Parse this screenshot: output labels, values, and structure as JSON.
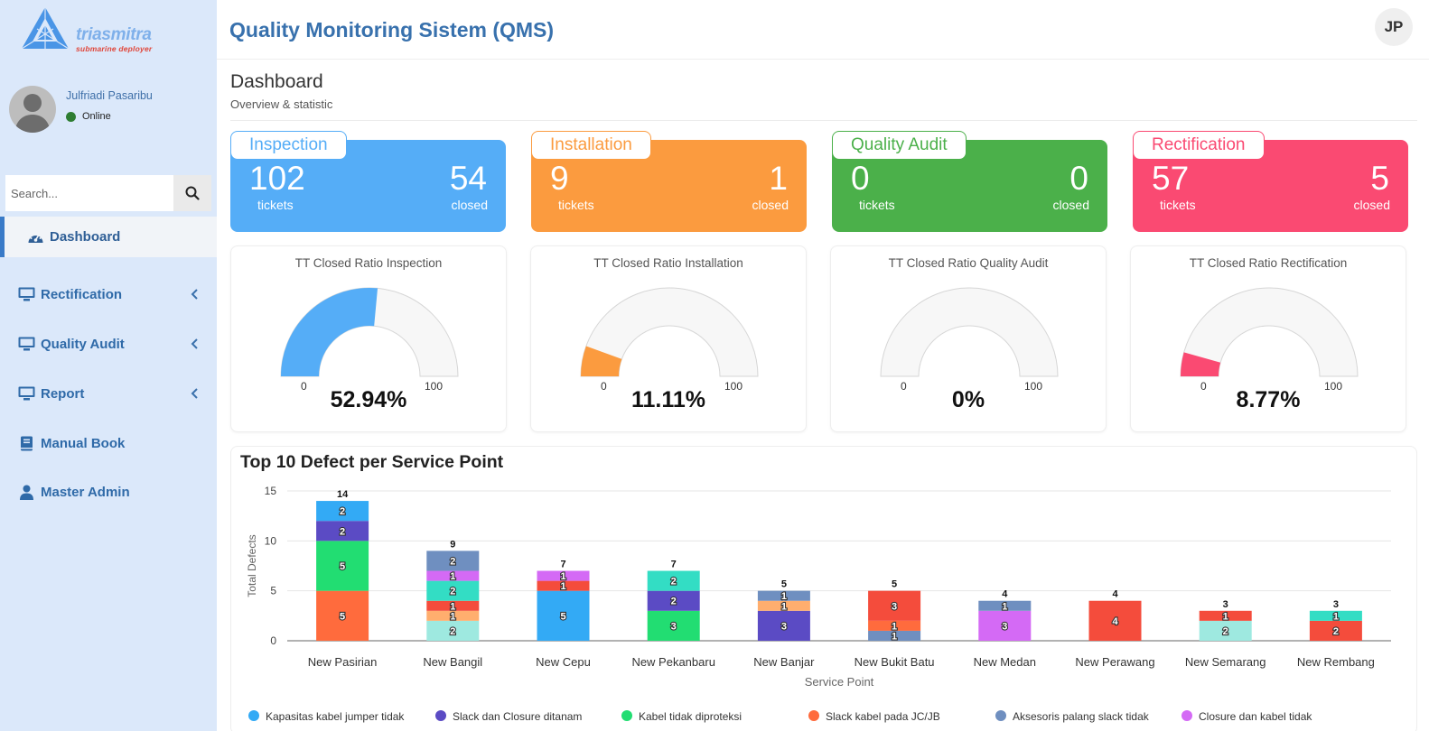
{
  "brand": {
    "name": "triasmitra",
    "tagline": "submarine deployer"
  },
  "user": {
    "name": "Julfriadi Pasaribu",
    "status": "Online",
    "initials": "JP"
  },
  "search": {
    "placeholder": "Search..."
  },
  "nav": {
    "active": "Dashboard",
    "items": [
      {
        "label": "Rectification",
        "icon": "monitor-icon",
        "has_submenu": true
      },
      {
        "label": "Quality Audit",
        "icon": "monitor-icon",
        "has_submenu": true
      },
      {
        "label": "Report",
        "icon": "monitor-icon",
        "has_submenu": true
      },
      {
        "label": "Manual Book",
        "icon": "book-icon",
        "has_submenu": false
      },
      {
        "label": "Master Admin",
        "icon": "user-icon",
        "has_submenu": false
      }
    ]
  },
  "header": {
    "title": "Quality Monitoring Sistem (QMS)"
  },
  "page": {
    "title": "Dashboard",
    "subtitle": "Overview & statistic"
  },
  "cards": [
    {
      "title": "Inspection",
      "tickets": "102",
      "tickets_label": "tickets",
      "closed": "54",
      "closed_label": "closed",
      "color": "#55adf7"
    },
    {
      "title": "Installation",
      "tickets": "9",
      "tickets_label": "tickets",
      "closed": "1",
      "closed_label": "closed",
      "color": "#fb9b3f"
    },
    {
      "title": "Quality Audit",
      "tickets": "0",
      "tickets_label": "tickets",
      "closed": "0",
      "closed_label": "closed",
      "color": "#4bb04a"
    },
    {
      "title": "Rectification",
      "tickets": "57",
      "tickets_label": "tickets",
      "closed": "5",
      "closed_label": "closed",
      "color": "#fa4a72"
    }
  ],
  "gauges": [
    {
      "title": "TT Closed Ratio Inspection",
      "value": 52.94,
      "display": "52.94%",
      "min": "0",
      "max": "100",
      "color": "#55adf7"
    },
    {
      "title": "TT Closed Ratio Installation",
      "value": 11.11,
      "display": "11.11%",
      "min": "0",
      "max": "100",
      "color": "#fb9b3f"
    },
    {
      "title": "TT Closed Ratio Quality Audit",
      "value": 0,
      "display": "0%",
      "min": "0",
      "max": "100",
      "color": "#4bb04a"
    },
    {
      "title": "TT Closed Ratio Rectification",
      "value": 8.77,
      "display": "8.77%",
      "min": "0",
      "max": "100",
      "color": "#fa4a72"
    }
  ],
  "chart_data": {
    "type": "bar",
    "stacked": true,
    "title": "Top 10 Defect per Service Point",
    "xlabel": "Service Point",
    "ylabel": "Total Defects",
    "ylim": [
      0,
      15
    ],
    "yticks": [
      0,
      5,
      10,
      15
    ],
    "grid": true,
    "legend_position": "bottom",
    "categories": [
      "New Pasirian",
      "New Bangil",
      "New Cepu",
      "New Pekanbaru",
      "New Banjar",
      "New Bukit Batu",
      "New Medan",
      "New Perawang",
      "New Semarang",
      "New Rembang"
    ],
    "totals": [
      14,
      9,
      7,
      7,
      5,
      5,
      4,
      4,
      3,
      3
    ],
    "segments": [
      [
        {
          "value": 0,
          "color": "#9ee9e0"
        },
        {
          "value": 5,
          "color": "#ff6b3d"
        },
        {
          "value": 5,
          "color": "#22dd72"
        },
        {
          "value": 2,
          "color": "#5b4bc4"
        },
        {
          "value": 2,
          "color": "#33aaf5"
        }
      ],
      [
        {
          "value": 2,
          "color": "#9ee9e0"
        },
        {
          "value": 1,
          "color": "#ffae6e"
        },
        {
          "value": 1,
          "color": "#f44c3c"
        },
        {
          "value": 2,
          "color": "#33ddc4"
        },
        {
          "value": 1,
          "color": "#d46af5"
        },
        {
          "value": 2,
          "color": "#6f8fc0"
        }
      ],
      [
        {
          "value": 0,
          "color": "#9ee9e0"
        },
        {
          "value": 5,
          "color": "#33aaf5"
        },
        {
          "value": 0,
          "color": "#ffae6e"
        },
        {
          "value": 1,
          "color": "#f44c3c"
        },
        {
          "value": 1,
          "color": "#d46af5"
        }
      ],
      [
        {
          "value": 3,
          "color": "#22dd72"
        },
        {
          "value": 2,
          "color": "#5b4bc4"
        },
        {
          "value": 2,
          "color": "#33ddc4"
        }
      ],
      [
        {
          "value": 3,
          "color": "#5b4bc4"
        },
        {
          "value": 0,
          "color": "#ff6b3d"
        },
        {
          "value": 1,
          "color": "#ffae6e"
        },
        {
          "value": 1,
          "color": "#6f8fc0"
        }
      ],
      [
        {
          "value": 1,
          "color": "#6f8fc0"
        },
        {
          "value": 1,
          "color": "#ff6b3d"
        },
        {
          "value": 3,
          "color": "#f44c3c"
        }
      ],
      [
        {
          "value": 3,
          "color": "#d46af5"
        },
        {
          "value": 1,
          "color": "#6f8fc0"
        }
      ],
      [
        {
          "value": 4,
          "color": "#f44c3c"
        }
      ],
      [
        {
          "value": 2,
          "color": "#9ee9e0"
        },
        {
          "value": 1,
          "color": "#f44c3c"
        }
      ],
      [
        {
          "value": 2,
          "color": "#f44c3c"
        },
        {
          "value": 1,
          "color": "#33ddc4"
        }
      ]
    ],
    "legend": [
      {
        "label": "Kapasitas kabel jumper tidak",
        "color": "#33aaf5"
      },
      {
        "label": "Slack dan Closure ditanam",
        "color": "#5b4bc4"
      },
      {
        "label": "Kabel tidak diproteksi",
        "color": "#22dd72"
      },
      {
        "label": "Slack kabel pada JC/JB",
        "color": "#ff6b3d"
      },
      {
        "label": "Aksesoris palang slack tidak",
        "color": "#6f8fc0"
      },
      {
        "label": "Closure dan kabel tidak",
        "color": "#d46af5"
      }
    ]
  }
}
